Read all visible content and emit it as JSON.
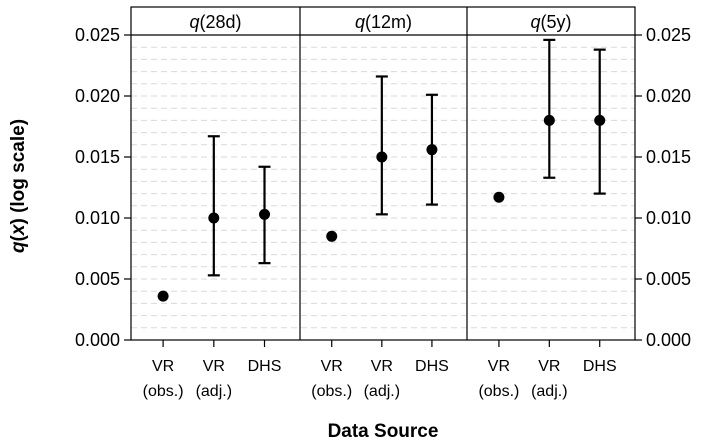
{
  "chart_data": {
    "type": "scatter",
    "xlabel": "Data Source",
    "ylabel": "q(x) (log scale)",
    "ylabel_parts": {
      "q": "q",
      "open": "(",
      "x": "x",
      "rest": ") (log scale)"
    },
    "ylim": [
      0,
      0.025
    ],
    "yticks": [
      "0.000",
      "0.005",
      "0.010",
      "0.015",
      "0.020",
      "0.025"
    ],
    "ytick_values": [
      0,
      0.005,
      0.01,
      0.015,
      0.02,
      0.025
    ],
    "grid": true,
    "categories": [
      {
        "line1": "VR",
        "line2": "(obs.)"
      },
      {
        "line1": "VR",
        "line2": "(adj.)"
      },
      {
        "line1": "DHS",
        "line2": ""
      }
    ],
    "panels": [
      {
        "label_q": "q",
        "label_rest": "(28d)",
        "points": [
          {
            "value": 0.0036,
            "lower": null,
            "upper": null
          },
          {
            "value": 0.01,
            "lower": 0.0053,
            "upper": 0.0167
          },
          {
            "value": 0.0103,
            "lower": 0.0063,
            "upper": 0.0142
          }
        ]
      },
      {
        "label_q": "q",
        "label_rest": "(12m)",
        "points": [
          {
            "value": 0.0085,
            "lower": null,
            "upper": null
          },
          {
            "value": 0.015,
            "lower": 0.0103,
            "upper": 0.0216
          },
          {
            "value": 0.0156,
            "lower": 0.0111,
            "upper": 0.0201
          }
        ]
      },
      {
        "label_q": "q",
        "label_rest": "(5y)",
        "points": [
          {
            "value": 0.0117,
            "lower": null,
            "upper": null
          },
          {
            "value": 0.018,
            "lower": 0.0133,
            "upper": 0.0246
          },
          {
            "value": 0.018,
            "lower": 0.012,
            "upper": 0.0238
          }
        ]
      }
    ]
  },
  "colors": {
    "point": "#000000",
    "errorbar": "#000000",
    "grid": "#d9d9d9",
    "frame": "#000000"
  }
}
